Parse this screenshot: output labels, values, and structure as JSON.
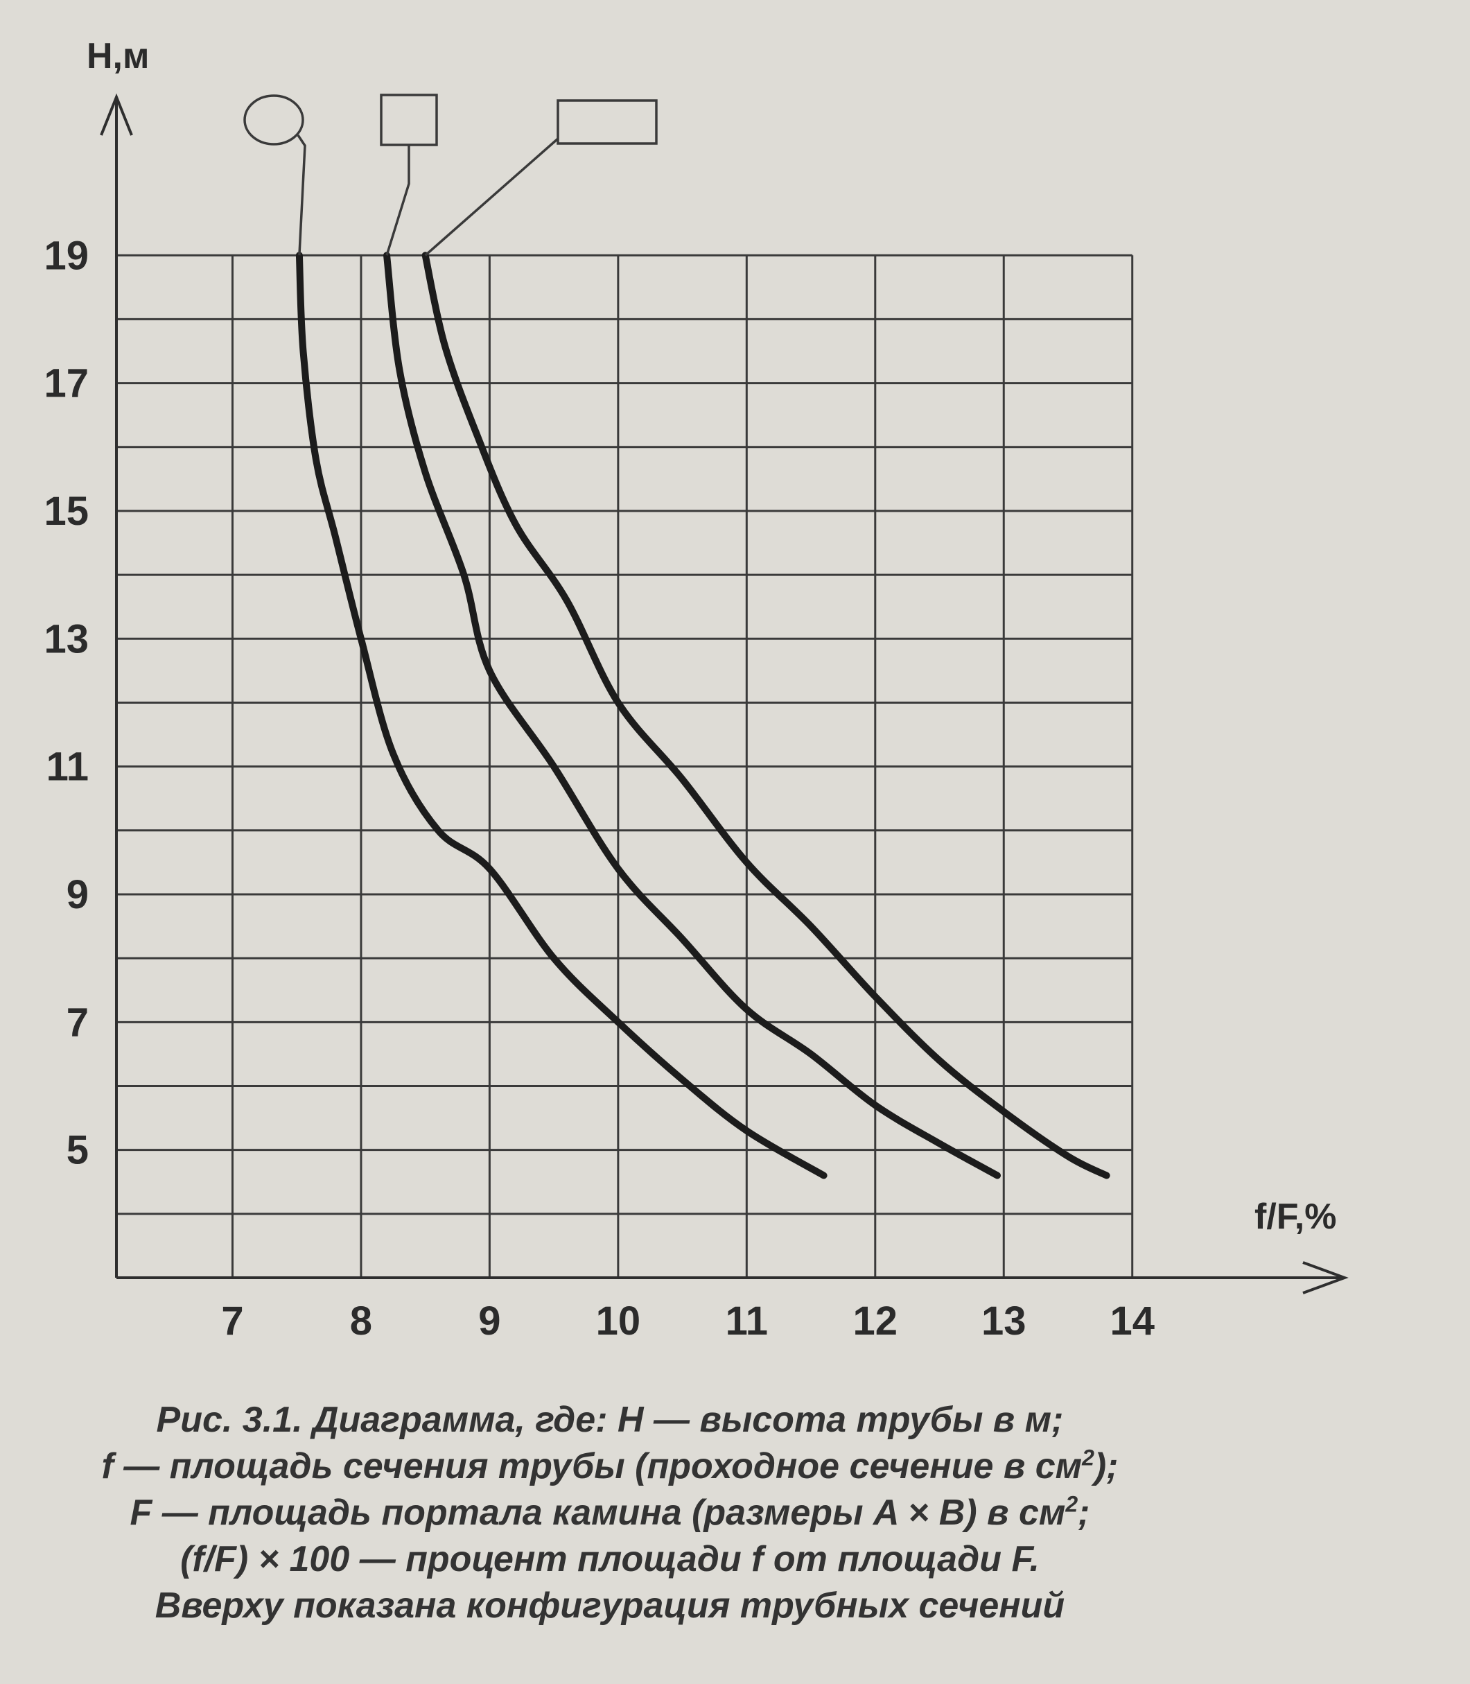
{
  "chart_data": {
    "type": "line",
    "xlabel": "f/F,%",
    "ylabel": "H,м",
    "xlim": [
      6,
      14.6
    ],
    "ylim": [
      3,
      20.5
    ],
    "x_ticks": [
      "7",
      "8",
      "9",
      "10",
      "11",
      "12",
      "13",
      "14"
    ],
    "y_ticks": [
      "5",
      "7",
      "9",
      "11",
      "13",
      "15",
      "17",
      "19"
    ],
    "grid": true,
    "series": [
      {
        "shape": "circle",
        "x": [
          7.52,
          7.55,
          7.65,
          7.8,
          8.0,
          8.25,
          8.6,
          9.0,
          9.5,
          10.0,
          10.5,
          11.0,
          11.6
        ],
        "y": [
          19.0,
          17.5,
          15.8,
          14.6,
          13.0,
          11.2,
          10.0,
          9.4,
          8.0,
          7.0,
          6.1,
          5.3,
          4.6
        ]
      },
      {
        "shape": "square",
        "x": [
          8.2,
          8.3,
          8.5,
          8.8,
          9.0,
          9.5,
          10.0,
          10.5,
          11.0,
          11.5,
          12.0,
          12.5,
          12.95
        ],
        "y": [
          19.0,
          17.2,
          15.6,
          14.0,
          12.5,
          11.0,
          9.4,
          8.3,
          7.2,
          6.5,
          5.7,
          5.1,
          4.6
        ]
      },
      {
        "shape": "rectangle",
        "x": [
          8.5,
          8.65,
          8.9,
          9.2,
          9.6,
          10.0,
          10.5,
          11.0,
          11.5,
          12.0,
          12.5,
          13.0,
          13.5,
          13.8
        ],
        "y": [
          19.0,
          17.6,
          16.2,
          14.8,
          13.6,
          12.0,
          10.8,
          9.5,
          8.5,
          7.4,
          6.4,
          5.6,
          4.9,
          4.6
        ]
      }
    ],
    "icons": [
      "circle-icon",
      "square-icon",
      "rectangle-icon"
    ]
  },
  "caption": {
    "line1": "Рис. 3.1. Диаграмма, где: Н — высота трубы в м;",
    "line2a": "f — площадь сечения трубы (проходное сечение в см",
    "line2sup": "2",
    "line2b": ");",
    "line3a": "F — площадь портала камина (размеры A × B) в см",
    "line3sup": "2",
    "line3b": ";",
    "line4": "(f/F) × 100 — процент площади f от площади F.",
    "line5": "Вверху показана конфигурация трубных сечений"
  }
}
